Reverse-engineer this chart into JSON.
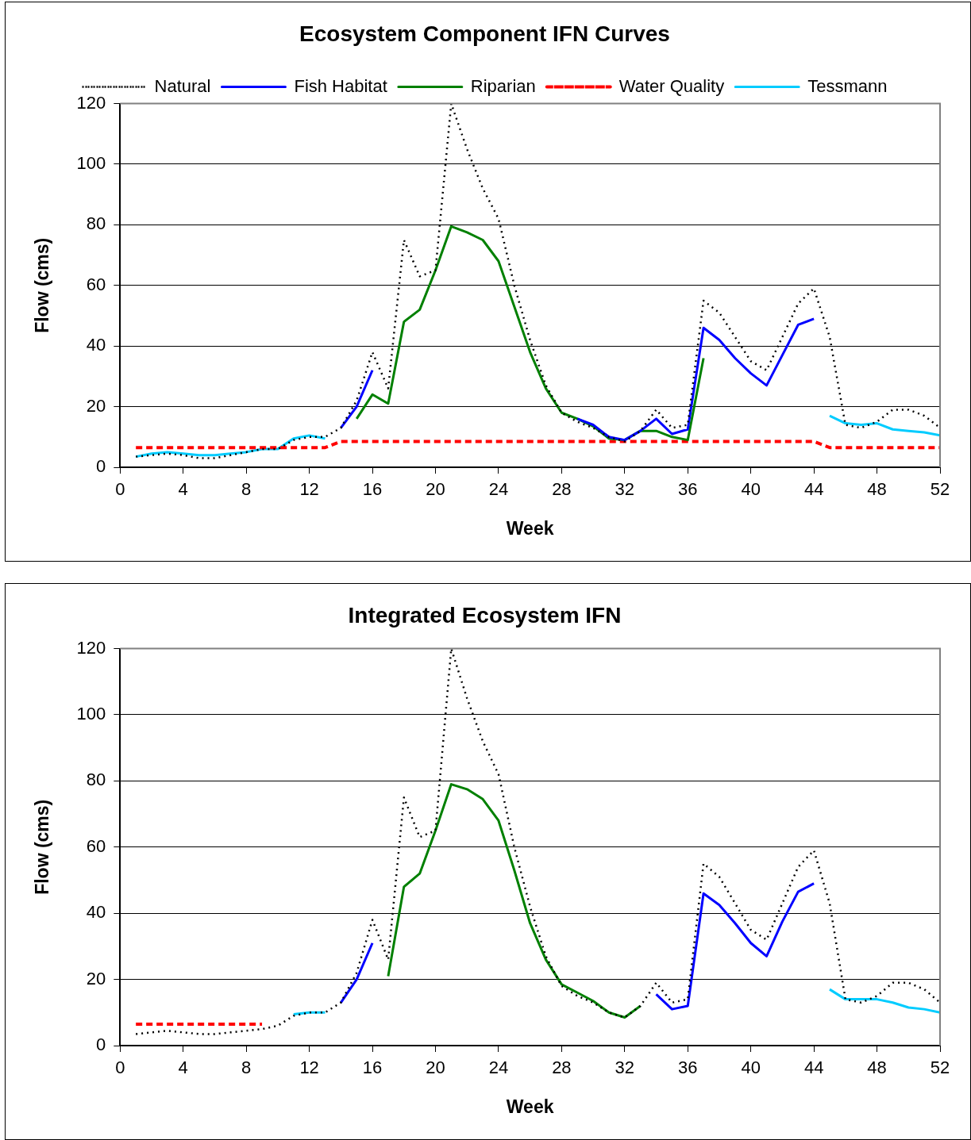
{
  "chart_data": [
    {
      "type": "line",
      "title": "Ecosystem Component IFN Curves",
      "xlabel": "Week",
      "ylabel": "Flow (cms)",
      "legend": "top",
      "grid": "y",
      "marker": "none",
      "x": [
        1,
        2,
        3,
        4,
        5,
        6,
        7,
        8,
        9,
        10,
        11,
        12,
        13,
        14,
        15,
        16,
        17,
        18,
        19,
        20,
        21,
        22,
        23,
        24,
        25,
        26,
        27,
        28,
        29,
        30,
        31,
        32,
        33,
        34,
        35,
        36,
        37,
        38,
        39,
        40,
        41,
        42,
        43,
        44,
        45,
        46,
        47,
        48,
        49,
        50,
        51,
        52
      ],
      "xlim": [
        0,
        52
      ],
      "xticks": [
        0,
        4,
        8,
        12,
        16,
        20,
        24,
        28,
        32,
        36,
        40,
        44,
        48,
        52
      ],
      "ylim": [
        0,
        120
      ],
      "yticks": [
        0,
        20,
        40,
        60,
        80,
        100,
        120
      ],
      "series": [
        {
          "name": "Natural",
          "color": "#000000",
          "line_style": "dotted",
          "values": [
            3.5,
            4,
            4.5,
            4,
            3,
            3,
            4,
            5,
            6,
            6,
            9,
            10,
            10,
            13,
            22,
            38,
            26,
            75,
            63,
            65,
            120,
            105,
            92,
            82,
            60,
            42,
            27,
            18,
            15,
            13,
            10,
            8.5,
            12,
            19,
            13,
            14,
            55,
            51,
            43,
            35,
            32,
            43,
            54,
            59,
            43,
            14,
            13,
            15,
            19,
            19,
            17,
            13
          ]
        },
        {
          "name": "Fish Habitat",
          "color": "#0000ff",
          "line_style": "solid",
          "values": [
            null,
            null,
            null,
            null,
            null,
            null,
            null,
            null,
            null,
            null,
            null,
            null,
            null,
            13,
            20,
            32,
            null,
            null,
            null,
            null,
            null,
            null,
            null,
            null,
            null,
            null,
            null,
            null,
            16,
            14,
            10,
            9,
            12,
            16,
            11,
            12.5,
            46,
            42,
            36,
            31,
            27,
            37,
            47,
            49,
            null,
            null,
            null,
            null,
            null,
            null,
            null,
            null
          ]
        },
        {
          "name": "Riparian",
          "color": "#008000",
          "line_style": "solid",
          "values": [
            null,
            null,
            null,
            null,
            null,
            null,
            null,
            null,
            null,
            null,
            null,
            null,
            null,
            null,
            16,
            24,
            21,
            48,
            52,
            65,
            79.5,
            77.5,
            75,
            68,
            53,
            38,
            26,
            18,
            16,
            13.5,
            9.5,
            9,
            12,
            12,
            10,
            9,
            36,
            null,
            null,
            null,
            null,
            null,
            null,
            null,
            null,
            null,
            null,
            null,
            null,
            null,
            null,
            null
          ]
        },
        {
          "name": "Water Quality",
          "color": "#ff0000",
          "line_style": "dashed",
          "values": [
            6.5,
            6.5,
            6.5,
            6.5,
            6.5,
            6.5,
            6.5,
            6.5,
            6.5,
            6.5,
            6.5,
            6.5,
            6.5,
            8.5,
            8.5,
            8.5,
            8.5,
            8.5,
            8.5,
            8.5,
            8.5,
            8.5,
            8.5,
            8.5,
            8.5,
            8.5,
            8.5,
            8.5,
            8.5,
            8.5,
            8.5,
            8.5,
            8.5,
            8.5,
            8.5,
            8.5,
            8.5,
            8.5,
            8.5,
            8.5,
            8.5,
            8.5,
            8.5,
            8.5,
            6.5,
            6.5,
            6.5,
            6.5,
            6.5,
            6.5,
            6.5,
            6.5
          ]
        },
        {
          "name": "Tessmann",
          "color": "#00ccff",
          "line_style": "solid",
          "values": [
            3.5,
            4.5,
            5,
            4.5,
            4,
            4,
            4.5,
            5,
            6,
            6,
            9.5,
            10.5,
            9.5,
            null,
            null,
            null,
            null,
            null,
            null,
            null,
            null,
            null,
            null,
            null,
            null,
            null,
            null,
            null,
            null,
            null,
            null,
            null,
            null,
            null,
            null,
            null,
            null,
            null,
            null,
            null,
            null,
            null,
            null,
            null,
            17,
            14.5,
            14,
            14.5,
            12.5,
            12,
            11.5,
            10.5
          ]
        }
      ]
    },
    {
      "type": "line",
      "title": "Integrated Ecosystem IFN",
      "xlabel": "Week",
      "ylabel": "Flow (cms)",
      "grid": "y",
      "marker": "none",
      "x": [
        1,
        2,
        3,
        4,
        5,
        6,
        7,
        8,
        9,
        10,
        11,
        12,
        13,
        14,
        15,
        16,
        17,
        18,
        19,
        20,
        21,
        22,
        23,
        24,
        25,
        26,
        27,
        28,
        29,
        30,
        31,
        32,
        33,
        34,
        35,
        36,
        37,
        38,
        39,
        40,
        41,
        42,
        43,
        44,
        45,
        46,
        47,
        48,
        49,
        50,
        51,
        52
      ],
      "xlim": [
        0,
        52
      ],
      "xticks": [
        0,
        4,
        8,
        12,
        16,
        20,
        24,
        28,
        32,
        36,
        40,
        44,
        48,
        52
      ],
      "ylim": [
        0,
        120
      ],
      "yticks": [
        0,
        20,
        40,
        60,
        80,
        100,
        120
      ],
      "series": [
        {
          "color": "#000000",
          "line_style": "dotted",
          "values": [
            3.5,
            4,
            4.5,
            4,
            3.5,
            3.5,
            4,
            4.5,
            5,
            6,
            9,
            10,
            10,
            13,
            22,
            38,
            26,
            75,
            63,
            65,
            120,
            105,
            92,
            82,
            60,
            42,
            27,
            18,
            15,
            13,
            10,
            8.5,
            12,
            19,
            13,
            14,
            55,
            51,
            43,
            35,
            32,
            43,
            54,
            59,
            43,
            14,
            13,
            15,
            19,
            19,
            17,
            13
          ]
        },
        {
          "color": "#0000ff",
          "line_style": "solid",
          "values": [
            null,
            null,
            null,
            null,
            null,
            null,
            null,
            null,
            null,
            null,
            null,
            null,
            null,
            13,
            20,
            31,
            null,
            null,
            null,
            null,
            null,
            null,
            null,
            null,
            null,
            null,
            null,
            null,
            null,
            null,
            null,
            null,
            null,
            15.5,
            11,
            12,
            46,
            42.5,
            37,
            31,
            27,
            37.5,
            46.5,
            49,
            null,
            null,
            null,
            null,
            null,
            null,
            null,
            null
          ]
        },
        {
          "color": "#008000",
          "line_style": "solid",
          "values": [
            null,
            null,
            null,
            null,
            null,
            null,
            null,
            null,
            null,
            null,
            null,
            null,
            null,
            null,
            null,
            null,
            21,
            48,
            52,
            65,
            79,
            77.5,
            74.5,
            68,
            53,
            37,
            26,
            18.5,
            16,
            13.5,
            10,
            8.5,
            12,
            null,
            null,
            null,
            null,
            null,
            null,
            null,
            null,
            null,
            null,
            null,
            null,
            null,
            null,
            null,
            null,
            null,
            null,
            null
          ]
        },
        {
          "color": "#ff0000",
          "line_style": "dashed",
          "values": [
            6.5,
            6.5,
            6.5,
            6.5,
            6.5,
            6.5,
            6.5,
            6.5,
            6.5,
            null,
            null,
            null,
            null,
            null,
            null,
            null,
            null,
            null,
            null,
            null,
            null,
            null,
            null,
            null,
            null,
            null,
            null,
            null,
            null,
            null,
            null,
            null,
            null,
            null,
            null,
            null,
            null,
            null,
            null,
            null,
            null,
            null,
            null,
            null,
            null,
            null,
            null,
            null,
            null,
            null,
            null,
            null
          ]
        },
        {
          "color": "#00ccff",
          "line_style": "solid",
          "values": [
            null,
            null,
            null,
            null,
            null,
            null,
            null,
            null,
            null,
            null,
            9.5,
            10,
            10,
            null,
            null,
            null,
            null,
            null,
            null,
            null,
            null,
            null,
            null,
            null,
            null,
            null,
            null,
            null,
            null,
            null,
            null,
            null,
            null,
            null,
            null,
            null,
            null,
            null,
            null,
            null,
            null,
            null,
            null,
            null,
            17,
            14,
            14,
            14,
            13,
            11.5,
            11,
            10
          ]
        }
      ]
    }
  ]
}
